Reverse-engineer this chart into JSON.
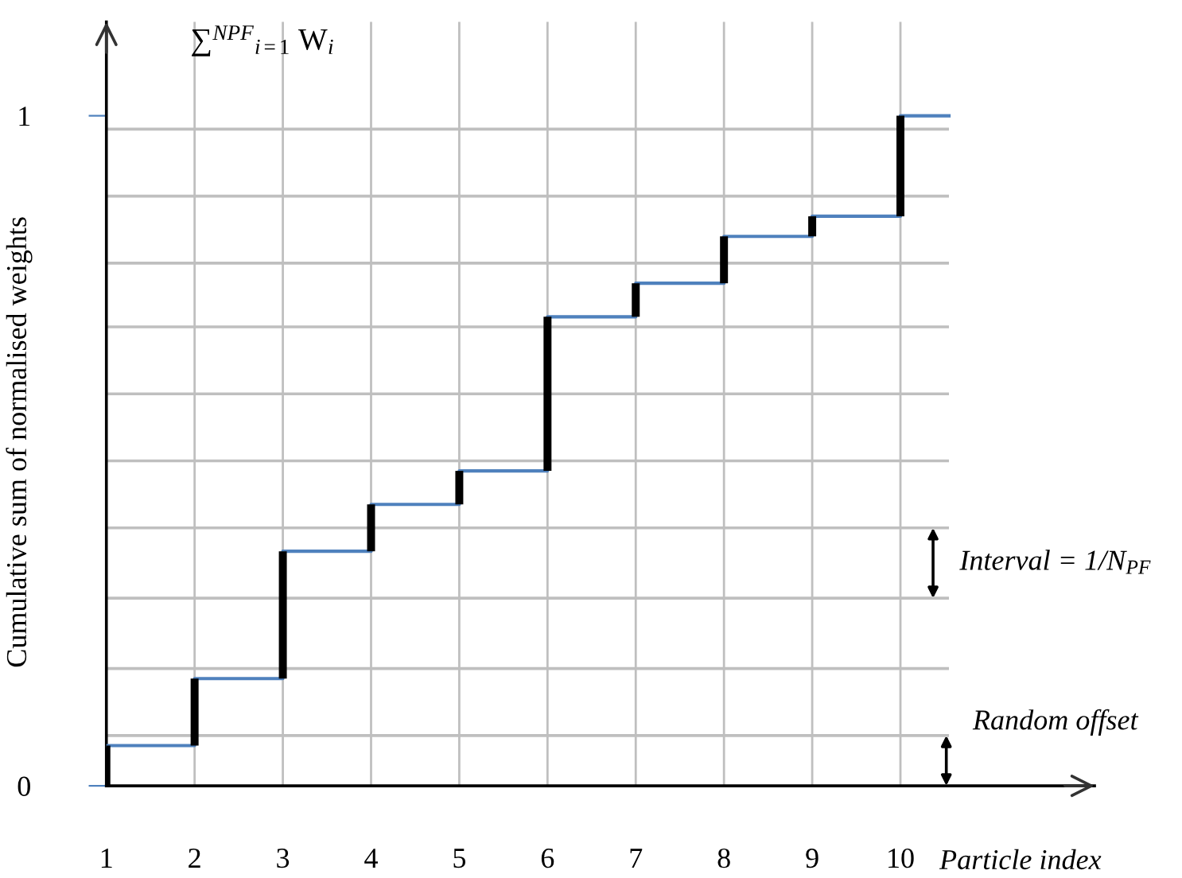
{
  "chart_data": {
    "type": "step",
    "xlabel": "Particle index",
    "ylabel": "Cumulative sum of normalised weights",
    "x": [
      1,
      2,
      3,
      4,
      5,
      6,
      7,
      8,
      9,
      10
    ],
    "series": [
      {
        "color": "#4f81bd",
        "x": [
          1,
          2,
          3,
          4,
          5,
          6,
          7,
          8,
          9,
          10,
          10.55
        ],
        "values": [
          0.06,
          0.16,
          0.35,
          0.42,
          0.47,
          0.7,
          0.75,
          0.82,
          0.85,
          1.0,
          1.0
        ]
      },
      {
        "type": "bar",
        "color": "#000000",
        "base": [
          0,
          0.06,
          0.16,
          0.35,
          0.42,
          0.47,
          0.7,
          0.75,
          0.82,
          0.85
        ],
        "values": [
          0.06,
          0.1,
          0.19,
          0.07,
          0.05,
          0.23,
          0.05,
          0.07,
          0.03,
          0.15
        ]
      }
    ],
    "xlim": [
      1,
      12.2
    ],
    "ylim": [
      0,
      1.14
    ],
    "xticks": [
      1,
      2,
      3,
      4,
      5,
      6,
      7,
      8,
      9,
      10
    ],
    "yticks": [
      0,
      1
    ],
    "ref_lines": [
      {
        "axis": "y",
        "value": 0.075,
        "color": "#bfbfbf"
      },
      {
        "axis": "y",
        "value": 0.175,
        "color": "#bfbfbf"
      },
      {
        "axis": "y",
        "value": 0.28,
        "color": "#bfbfbf"
      },
      {
        "axis": "y",
        "value": 0.385,
        "color": "#bfbfbf"
      },
      {
        "axis": "y",
        "value": 0.485,
        "color": "#bfbfbf"
      },
      {
        "axis": "y",
        "value": 0.585,
        "color": "#bfbfbf"
      },
      {
        "axis": "y",
        "value": 0.685,
        "color": "#bfbfbf"
      },
      {
        "axis": "y",
        "value": 0.78,
        "color": "#bfbfbf"
      },
      {
        "axis": "y",
        "value": 0.88,
        "color": "#bfbfbf"
      },
      {
        "axis": "y",
        "value": 0.98,
        "color": "#bfbfbf"
      },
      {
        "axis": "x",
        "value": 2,
        "color": "#bfbfbf"
      },
      {
        "axis": "x",
        "value": 3,
        "color": "#bfbfbf"
      },
      {
        "axis": "x",
        "value": 4,
        "color": "#bfbfbf"
      },
      {
        "axis": "x",
        "value": 5,
        "color": "#bfbfbf"
      },
      {
        "axis": "x",
        "value": 6,
        "color": "#bfbfbf"
      },
      {
        "axis": "x",
        "value": 7,
        "color": "#bfbfbf"
      },
      {
        "axis": "x",
        "value": 8,
        "color": "#bfbfbf"
      },
      {
        "axis": "x",
        "value": 9,
        "color": "#bfbfbf"
      },
      {
        "axis": "x",
        "value": 10,
        "color": "#bfbfbf"
      }
    ],
    "annotations": [
      "∑$^{NPF}$$_{i=1}$ W$_{i}$",
      "Interval = 1/N$_{PF}$",
      "Random offset"
    ]
  }
}
